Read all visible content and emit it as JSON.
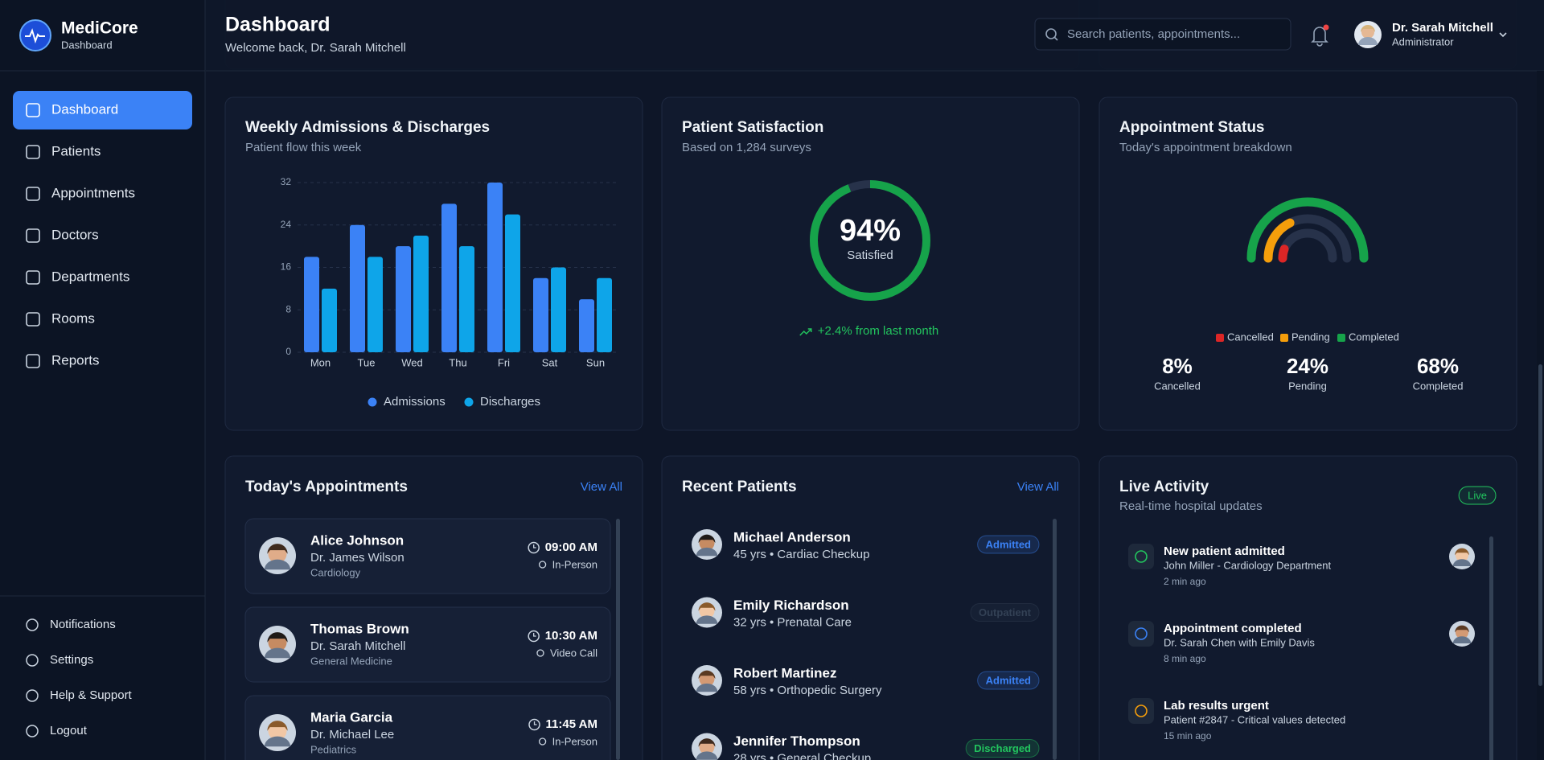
{
  "sidebar": {
    "brand": "MediCore",
    "brand_sub": "Dashboard",
    "nav": [
      "Dashboard",
      "Patients",
      "Appointments",
      "Doctors",
      "Departments",
      "Rooms",
      "Reports"
    ],
    "footer_nav": [
      "Notifications",
      "Settings",
      "Help & Support",
      "Logout"
    ]
  },
  "header": {
    "title": "Dashboard",
    "subtitle": "Welcome back, Dr. Sarah Mitchell",
    "search_placeholder": "Search patients, appointments...",
    "user_name": "Dr. Sarah Mitchell",
    "user_role": "Administrator"
  },
  "chart_data": [
    {
      "type": "bar",
      "title": "Weekly Admissions & Discharges",
      "subtitle": "Patient flow this week",
      "categories": [
        "Mon",
        "Tue",
        "Wed",
        "Thu",
        "Fri",
        "Sat",
        "Sun"
      ],
      "series": [
        {
          "name": "Admissions",
          "color": "#3b82f6",
          "values": [
            18,
            24,
            20,
            28,
            32,
            14,
            10
          ]
        },
        {
          "name": "Discharges",
          "color": "#0ea5e9",
          "values": [
            12,
            18,
            22,
            20,
            26,
            16,
            14
          ]
        }
      ],
      "ylim": [
        0,
        32
      ],
      "yticks": [
        0,
        8,
        16,
        24,
        32
      ],
      "grid": true,
      "legend": "bottom"
    },
    {
      "type": "donut",
      "title": "Patient Satisfaction",
      "subtitle": "Based on 1,284 surveys",
      "value": 94,
      "value_label": "94%",
      "center_label": "Satisfied",
      "note": "+2.4% from last month",
      "color": "#16a34a",
      "ylim": [
        0,
        100
      ]
    },
    {
      "type": "radial",
      "title": "Appointment Status",
      "subtitle": "Today's appointment breakdown",
      "categories": [
        "Cancelled",
        "Pending",
        "Completed"
      ],
      "values": [
        8,
        24,
        68
      ],
      "value_labels": [
        "8%",
        "24%",
        "68%"
      ],
      "colors": [
        "#dc2626",
        "#f59e0b",
        "#16a34a"
      ],
      "legend": "bottom"
    }
  ],
  "appointments": {
    "title": "Today's Appointments",
    "action": "View All",
    "items": [
      {
        "name": "Alice Johnson",
        "doctor": "Dr. James Wilson",
        "department": "Cardiology",
        "time": "09:00 AM",
        "type": "In-Person"
      },
      {
        "name": "Thomas Brown",
        "doctor": "Dr. Sarah Mitchell",
        "department": "General Medicine",
        "time": "10:30 AM",
        "type": "Video Call"
      },
      {
        "name": "Maria Garcia",
        "doctor": "Dr. Michael Lee",
        "department": "Pediatrics",
        "time": "11:45 AM",
        "type": "In-Person"
      }
    ]
  },
  "recent_patients": {
    "title": "Recent Patients",
    "action": "View All",
    "items": [
      {
        "name": "Michael Anderson",
        "details": "45 yrs • Cardiac Checkup",
        "status": "Admitted",
        "color": "#3b82f6"
      },
      {
        "name": "Emily Richardson",
        "details": "32 yrs • Prenatal Care",
        "status": "Outpatient",
        "color": "#334155"
      },
      {
        "name": "Robert Martinez",
        "details": "58 yrs • Orthopedic Surgery",
        "status": "Admitted",
        "color": "#3b82f6"
      },
      {
        "name": "Jennifer Thompson",
        "details": "28 yrs • General Checkup",
        "status": "Discharged",
        "color": "#22c55e"
      }
    ]
  },
  "live_activity": {
    "title": "Live Activity",
    "subtitle": "Real-time hospital updates",
    "badge": "Live",
    "items": [
      {
        "title": "New patient admitted",
        "description": "John Miller - Cardiology Department",
        "time": "2 min ago",
        "color": "#22c55e"
      },
      {
        "title": "Appointment completed",
        "description": "Dr. Sarah Chen with Emily Davis",
        "time": "8 min ago",
        "color": "#3b82f6"
      },
      {
        "title": "Lab results urgent",
        "description": "Patient #2847 - Critical values detected",
        "time": "15 min ago",
        "color": "#f59e0b"
      }
    ]
  }
}
